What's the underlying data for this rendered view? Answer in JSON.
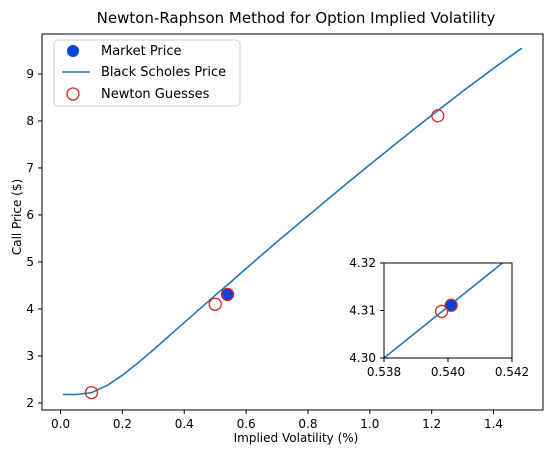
{
  "chart_data": {
    "type": "line",
    "title": "Newton-Raphson Method for Option Implied Volatility",
    "xlabel": "Implied Volatility (%)",
    "ylabel": "Call Price ($)",
    "xlim": [
      -0.06,
      1.56
    ],
    "ylim": [
      1.85,
      9.85
    ],
    "xticks": [
      0.0,
      0.2,
      0.4,
      0.6,
      0.8,
      1.0,
      1.2,
      1.4
    ],
    "xtick_labels": [
      "0.0",
      "0.2",
      "0.4",
      "0.6",
      "0.8",
      "1.0",
      "1.2",
      "1.4"
    ],
    "yticks": [
      2,
      3,
      4,
      5,
      6,
      7,
      8,
      9
    ],
    "ytick_labels": [
      "2",
      "3",
      "4",
      "5",
      "6",
      "7",
      "8",
      "9"
    ],
    "grid": false,
    "legend_position": "top-left",
    "series": [
      {
        "name": "Market Price",
        "kind": "scatter",
        "color": "#0343df",
        "marker": "filled-circle",
        "points": [
          [
            0.54,
            4.311
          ]
        ]
      },
      {
        "name": "Black Scholes Price",
        "kind": "line",
        "color": "#1f77b4",
        "x": [
          0.01,
          0.05,
          0.1,
          0.15,
          0.2,
          0.25,
          0.3,
          0.35,
          0.4,
          0.45,
          0.5,
          0.55,
          0.6,
          0.7,
          0.8,
          0.9,
          1.0,
          1.1,
          1.2,
          1.3,
          1.4,
          1.49
        ],
        "y": [
          2.18,
          2.18,
          2.22,
          2.37,
          2.59,
          2.85,
          3.13,
          3.42,
          3.71,
          4.0,
          4.29,
          4.57,
          4.86,
          5.43,
          5.98,
          6.53,
          7.07,
          7.6,
          8.12,
          8.63,
          9.12,
          9.54
        ]
      },
      {
        "name": "Newton Guesses",
        "kind": "scatter",
        "color": "#d62728",
        "marker": "hollow-circle",
        "points": [
          [
            0.1,
            2.22
          ],
          [
            0.5,
            4.1
          ],
          [
            0.54,
            4.31
          ],
          [
            1.22,
            8.11
          ]
        ]
      }
    ],
    "inset": {
      "xlim": [
        0.538,
        0.542
      ],
      "ylim": [
        4.3,
        4.32
      ],
      "xticks": [
        0.538,
        0.54,
        0.542
      ],
      "xtick_labels": [
        "0.538",
        "0.540",
        "0.542"
      ],
      "yticks": [
        4.3,
        4.31,
        4.32
      ],
      "ytick_labels": [
        "4.30",
        "4.31",
        "4.32"
      ],
      "line": {
        "x": [
          0.538,
          0.5417
        ],
        "y": [
          4.3,
          4.32
        ]
      },
      "market_price": [
        [
          0.5401,
          4.3111
        ]
      ],
      "newton_guesses": [
        [
          0.5398,
          4.3098
        ],
        [
          0.5401,
          4.3111
        ]
      ]
    }
  }
}
